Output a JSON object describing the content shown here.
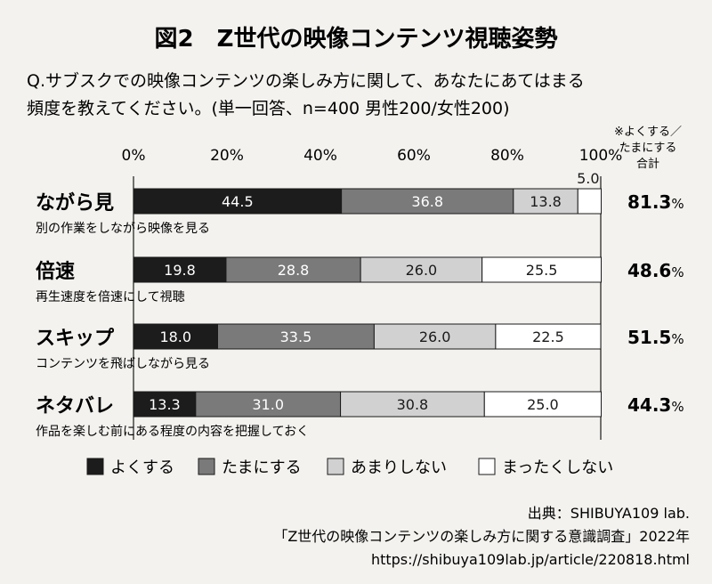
{
  "title": "図2　Z世代の映像コンテンツ視聴姿勢",
  "question_line1": "Q.サブスクでの映像コンテンツの楽しみ方に関して、あなたにあてはまる",
  "question_line2": "頻度を教えてください。(単一回答、n=400 男性200/女性200)",
  "total_header": [
    "※よくする／",
    "たまにする",
    "合計"
  ],
  "colors": {
    "often": "#1c1c1c",
    "sometimes": "#7a7a7a",
    "rarely": "#d1d1d1",
    "never": "#ffffff",
    "background": "#f3f2ef"
  },
  "chart_data": {
    "type": "bar",
    "orientation": "horizontal",
    "stacked": true,
    "xlim": [
      0,
      100
    ],
    "x_ticks": [
      "0%",
      "20%",
      "40%",
      "60%",
      "80%",
      "100%"
    ],
    "categories": [
      {
        "name": "ながら見",
        "sub": "別の作業をしながら映像を見る",
        "total": "81.3"
      },
      {
        "name": "倍速",
        "sub": "再生速度を倍速にして視聴",
        "total": "48.6"
      },
      {
        "name": "スキップ",
        "sub": "コンテンツを飛ばしながら見る",
        "total": "51.5"
      },
      {
        "name": "ネタバレ",
        "sub": "作品を楽しむ前にある程度の内容を把握しておく",
        "total": "44.3"
      }
    ],
    "series": [
      {
        "name": "よくする",
        "values": [
          44.5,
          19.8,
          18.0,
          13.3
        ],
        "labels": [
          "44.5",
          "19.8",
          "18.0",
          "13.3"
        ]
      },
      {
        "name": "たまにする",
        "values": [
          36.8,
          28.8,
          33.5,
          31.0
        ],
        "labels": [
          "36.8",
          "28.8",
          "33.5",
          "31.0"
        ]
      },
      {
        "name": "あまりしない",
        "values": [
          13.8,
          26.0,
          26.0,
          30.8
        ],
        "labels": [
          "13.8",
          "26.0",
          "26.0",
          "30.8"
        ]
      },
      {
        "name": "まったくしない",
        "values": [
          5.0,
          25.5,
          22.5,
          25.0
        ],
        "labels": [
          "5.0",
          "25.5",
          "22.5",
          "25.0"
        ]
      }
    ],
    "legend_position": "bottom"
  },
  "source": [
    "出典：SHIBUYA109 lab.",
    "「Z世代の映像コンテンツの楽しみ方に関する意識調査」2022年",
    "https://shibuya109lab.jp/article/220818.html"
  ]
}
